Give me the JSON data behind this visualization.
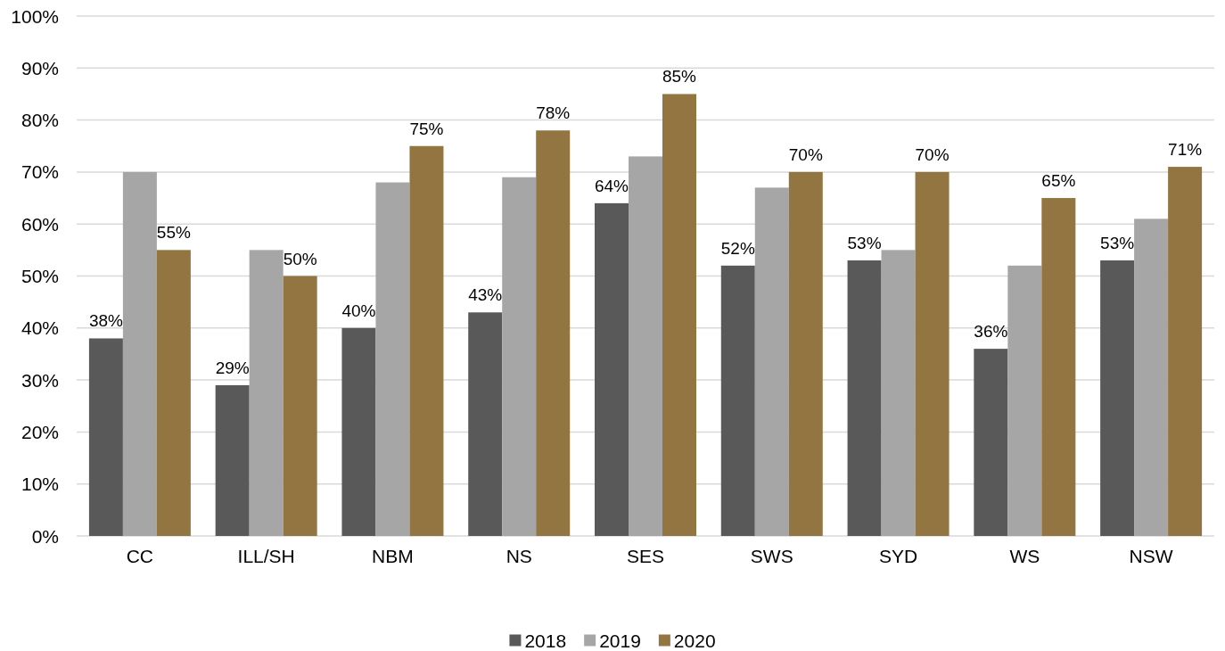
{
  "chart_data": {
    "type": "bar",
    "categories": [
      "CC",
      "ILL/SH",
      "NBM",
      "NS",
      "SES",
      "SWS",
      "SYD",
      "WS",
      "NSW"
    ],
    "series": [
      {
        "name": "2018",
        "color": "#595959",
        "values": [
          38,
          29,
          40,
          43,
          64,
          52,
          53,
          36,
          53
        ],
        "value_labels": [
          "38%",
          "29%",
          "40%",
          "43%",
          "64%",
          "52%",
          "53%",
          "36%",
          "53%"
        ]
      },
      {
        "name": "2019",
        "color": "#a6a6a6",
        "values": [
          70,
          55,
          68,
          69,
          73,
          67,
          55,
          52,
          61
        ]
      },
      {
        "name": "2020",
        "color": "#937541",
        "values": [
          55,
          50,
          75,
          78,
          85,
          70,
          70,
          65,
          71
        ],
        "value_labels": [
          "55%",
          "50%",
          "75%",
          "78%",
          "85%",
          "70%",
          "70%",
          "65%",
          "71%"
        ]
      }
    ],
    "ylim": [
      0,
      100
    ],
    "yticks": [
      {
        "value": 0,
        "label": "0%"
      },
      {
        "value": 10,
        "label": "10%"
      },
      {
        "value": 20,
        "label": "20%"
      },
      {
        "value": 30,
        "label": "30%"
      },
      {
        "value": 40,
        "label": "40%"
      },
      {
        "value": 50,
        "label": "50%"
      },
      {
        "value": 60,
        "label": "60%"
      },
      {
        "value": 70,
        "label": "70%"
      },
      {
        "value": 80,
        "label": "80%"
      },
      {
        "value": 90,
        "label": "90%"
      },
      {
        "value": 100,
        "label": "100%"
      }
    ],
    "grid": "y",
    "legend": "bottom"
  }
}
